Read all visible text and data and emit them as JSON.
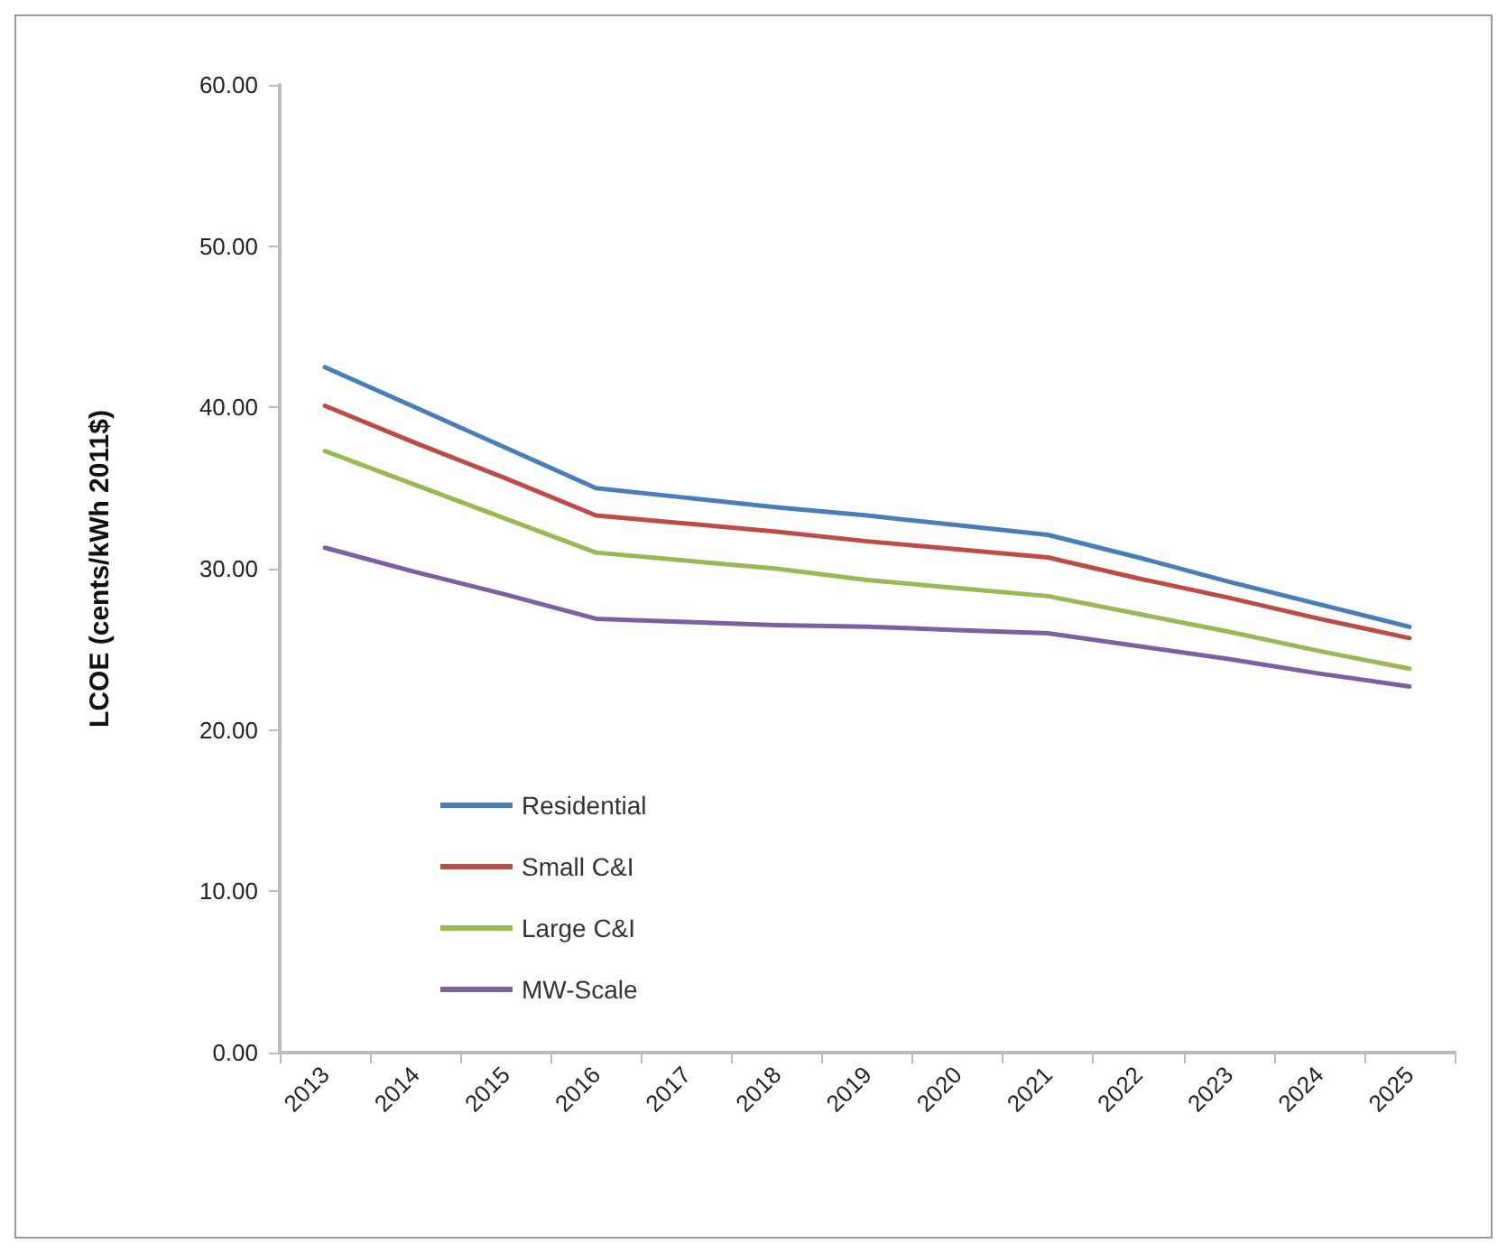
{
  "chart_data": {
    "type": "line",
    "ylabel": "LCOE (cents/kWh 2011$)",
    "categories": [
      "2013",
      "2014",
      "2015",
      "2016",
      "2017",
      "2018",
      "2019",
      "2020",
      "2021",
      "2022",
      "2023",
      "2024",
      "2025"
    ],
    "series": [
      {
        "name": "Residential",
        "color": "#4a7ebb",
        "values": [
          42.5,
          40.0,
          37.5,
          35.0,
          34.4,
          33.8,
          33.3,
          32.7,
          32.1,
          30.7,
          29.2,
          27.8,
          26.4
        ]
      },
      {
        "name": "Small C&I",
        "color": "#be4b48",
        "values": [
          40.1,
          37.8,
          35.6,
          33.3,
          32.8,
          32.3,
          31.7,
          31.2,
          30.7,
          29.4,
          28.2,
          26.9,
          25.7
        ]
      },
      {
        "name": "Large C&I",
        "color": "#98b954",
        "values": [
          37.3,
          35.2,
          33.1,
          31.0,
          30.5,
          30.0,
          29.3,
          28.8,
          28.3,
          27.2,
          26.1,
          24.9,
          23.8
        ]
      },
      {
        "name": "MW-Scale",
        "color": "#7d60a0",
        "values": [
          31.3,
          29.8,
          28.4,
          26.9,
          26.7,
          26.5,
          26.4,
          26.2,
          26.0,
          25.2,
          24.4,
          23.5,
          22.7
        ]
      }
    ],
    "ylim": [
      0,
      60
    ],
    "yticks": [
      {
        "value": 0,
        "label": "0.00"
      },
      {
        "value": 10,
        "label": "10.00"
      },
      {
        "value": 20,
        "label": "20.00"
      },
      {
        "value": 30,
        "label": "30.00"
      },
      {
        "value": 40,
        "label": "40.00"
      },
      {
        "value": 50,
        "label": "50.00"
      },
      {
        "value": 60,
        "label": "60.00"
      }
    ],
    "grid": false,
    "legend": "bottom left",
    "marker": "none",
    "line_style": "solid"
  }
}
